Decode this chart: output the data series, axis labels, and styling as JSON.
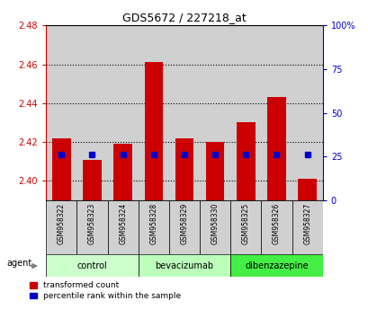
{
  "title": "GDS5672 / 227218_at",
  "samples": [
    "GSM958322",
    "GSM958323",
    "GSM958324",
    "GSM958328",
    "GSM958329",
    "GSM958330",
    "GSM958325",
    "GSM958326",
    "GSM958327"
  ],
  "red_values": [
    2.422,
    2.411,
    2.419,
    2.461,
    2.422,
    2.42,
    2.43,
    2.443,
    2.401
  ],
  "blue_pct": [
    26,
    26,
    26,
    26,
    26,
    26,
    26,
    26,
    26
  ],
  "ylim_left": [
    2.39,
    2.48
  ],
  "ylim_right": [
    0,
    100
  ],
  "yticks_left": [
    2.4,
    2.42,
    2.44,
    2.46,
    2.48
  ],
  "yticks_right": [
    0,
    25,
    50,
    75,
    100
  ],
  "groups": [
    {
      "label": "control",
      "indices": [
        0,
        1,
        2
      ],
      "color": "#ccffcc"
    },
    {
      "label": "bevacizumab",
      "indices": [
        3,
        4,
        5
      ],
      "color": "#bbffbb"
    },
    {
      "label": "dibenzazepine",
      "indices": [
        6,
        7,
        8
      ],
      "color": "#44ee44"
    }
  ],
  "bar_bottom": 2.39,
  "bar_color": "#cc0000",
  "dot_color": "#0000cc",
  "left_tick_color": "#cc0000",
  "right_tick_color": "#0000cc",
  "legend_red": "transformed count",
  "legend_blue": "percentile rank within the sample",
  "agent_label": "agent",
  "sample_bg": "#d0d0d0",
  "plot_bg": "white"
}
